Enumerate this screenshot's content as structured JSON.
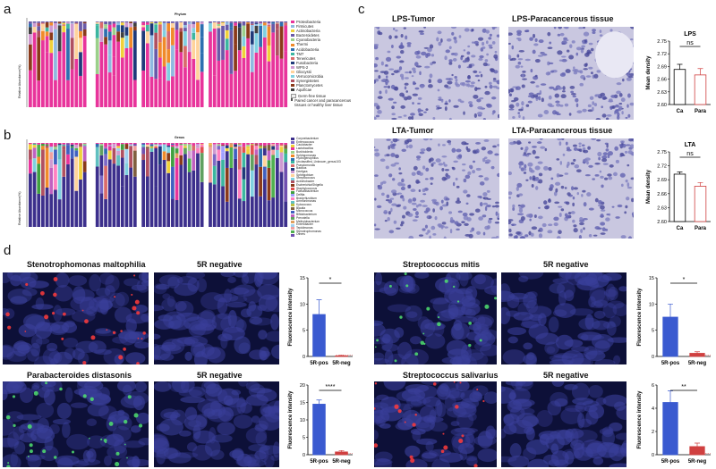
{
  "panel_labels": {
    "a": "a",
    "b": "b",
    "c": "c",
    "d": "d"
  },
  "panel_a": {
    "title": "Phylum",
    "ylabel": "Relative Abundance(%)",
    "legend": [
      "Proteobacteria",
      "Firmicutes",
      "Actinobacteria",
      "Bacteroidetes",
      "Cyanobacteria",
      "Thermi",
      "Acidobacteria",
      "TM7",
      "Tenericutes",
      "Fusobacteria",
      "WPS-2",
      "Gliocystii",
      "Verrucomicrobia",
      "Synergistetes",
      "Planctomycetes",
      "Aquificae"
    ],
    "group_legend": [
      "Germ-free tissue",
      "Paired cancer and paracancerous tissues or healthy liver tissue"
    ],
    "colors": [
      "#e8349b",
      "#8fb9e0",
      "#f0d13a",
      "#6a5aa8",
      "#9bd08a",
      "#f08a2a",
      "#2e6fb0",
      "#3cb6a0",
      "#d96b6b",
      "#1f3a7a",
      "#cf9ad0",
      "#ffd39b",
      "#7fd0e0",
      "#b05060",
      "#8a3a1a",
      "#404040"
    ]
  },
  "panel_b": {
    "title": "Genus",
    "ylabel": "Relative Abundance(%)",
    "legend": [
      "Corynebacterium",
      "Enterococcus",
      "Caulobacter",
      "Lactobacillus",
      "Burkholderia",
      "Sphingomonas",
      "Hydrogenophilus",
      "Unclassified_Unknown_genus103",
      "Pseudomonas",
      "Bacillus",
      "Deefgea",
      "Sphingobium",
      "Streptococcus",
      "Acinetobacter",
      "Escherichia/Shigella",
      "Staphylococcus",
      "Faecalibacterium",
      "Delftia",
      "Bradyrhizobium",
      "Ammonimonas",
      "Kytococcus",
      "Blautia",
      "Micrococcus",
      "Bifidobacterium",
      "Prevotella",
      "Methylobacterium",
      "Enterobacter",
      "Tepidimonas",
      "Stenotrophomonas",
      "Others"
    ],
    "colors": [
      "#3c2f8c",
      "#7b68c6",
      "#f0d13a",
      "#e8349b",
      "#9bd08a",
      "#f08a2a",
      "#2e6fb0",
      "#3cb6a0",
      "#d96b6b",
      "#1f3a7a",
      "#cf9ad0",
      "#ffd39b",
      "#7fd0e0",
      "#b05060",
      "#8a3a1a",
      "#e05050",
      "#40a040",
      "#a0a0ff",
      "#ff80c0",
      "#60c0c0",
      "#c0c040",
      "#806040",
      "#4060c0",
      "#c060c0",
      "#60a060",
      "#e0a060",
      "#a0d0f0",
      "#f0a0a0",
      "#50b050",
      "#7050b0"
    ]
  },
  "panel_c": {
    "images": [
      "LPS-Tumor",
      "LPS-Paracancerous tissue",
      "LTA-Tumor",
      "LTA-Paracancerous tissue"
    ],
    "charts": [
      {
        "title": "LPS",
        "ylabel": "Mean density",
        "categories": [
          "Ca",
          "Para"
        ],
        "values": [
          2.683,
          2.67
        ],
        "errors": [
          0.012,
          0.015
        ],
        "ylim": [
          2.6,
          2.75
        ],
        "ticks": [
          "2.75",
          "2.72",
          "2.69",
          "2.66",
          "2.63",
          "2.60"
        ],
        "sig": "ns"
      },
      {
        "title": "LTA",
        "ylabel": "Mean density",
        "categories": [
          "Ca",
          "Para"
        ],
        "values": [
          2.702,
          2.676
        ],
        "errors": [
          0.005,
          0.008
        ],
        "ylim": [
          2.6,
          2.75
        ],
        "ticks": [
          "2.75",
          "2.72",
          "2.69",
          "2.66",
          "2.63",
          "2.60"
        ],
        "sig": "ns"
      }
    ]
  },
  "panel_d": {
    "images": [
      "Stenotrophomonas maltophilia",
      "5R negative",
      "Parabacteroides distasonis",
      "5R negative",
      "Streptococcus mitis",
      "5R negative",
      "Streptococcus salivarius",
      "5R negative"
    ],
    "charts": [
      {
        "ylabel": "Fluorescence intensity",
        "categories": [
          "5R-pos",
          "5R-neg"
        ],
        "values": [
          8,
          0.1
        ],
        "errors": [
          2.8,
          0.1
        ],
        "ylim": [
          0,
          15
        ],
        "ticks": [
          "15",
          "10",
          "5",
          "0"
        ],
        "sig": "*",
        "neg_color": "#d04040"
      },
      {
        "ylabel": "Fluorescence intensity",
        "categories": [
          "5R-pos",
          "5R-neg"
        ],
        "values": [
          14.5,
          0.8
        ],
        "errors": [
          1.2,
          0.4
        ],
        "ylim": [
          0,
          20
        ],
        "ticks": [
          "20",
          "15",
          "10",
          "5",
          "0"
        ],
        "sig": "****",
        "neg_color": "#d04040"
      },
      {
        "ylabel": "Fluorescence intensity",
        "categories": [
          "5R-pos",
          "5R-neg"
        ],
        "values": [
          7.5,
          0.6
        ],
        "errors": [
          2.5,
          0.3
        ],
        "ylim": [
          0,
          15
        ],
        "ticks": [
          "15",
          "10",
          "5",
          "0"
        ],
        "sig": "*",
        "neg_color": "#d04040"
      },
      {
        "ylabel": "Fluorescence intensity",
        "categories": [
          "5R-pos",
          "5R-neg"
        ],
        "values": [
          4.5,
          0.7
        ],
        "errors": [
          1.0,
          0.3
        ],
        "ylim": [
          0,
          6
        ],
        "ticks": [
          "6",
          "4",
          "2",
          "0"
        ],
        "sig": "**",
        "neg_color": "#d04040"
      }
    ]
  }
}
